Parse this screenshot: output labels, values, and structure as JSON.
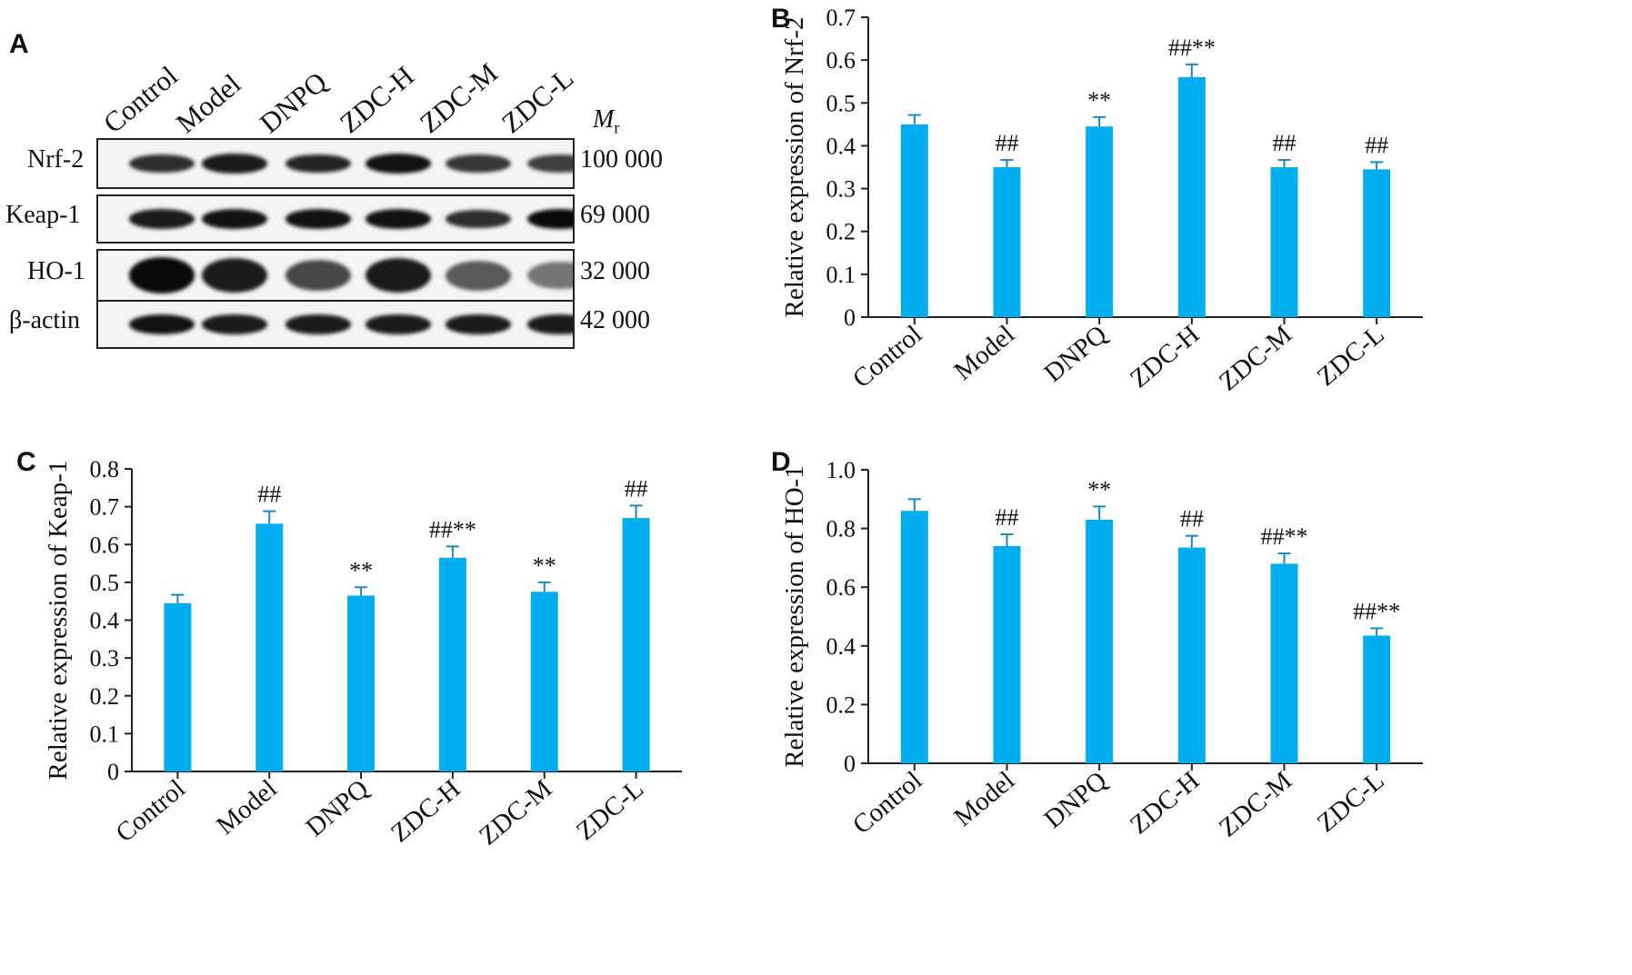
{
  "panels": {
    "a": "A",
    "b": "B",
    "c": "C",
    "d": "D"
  },
  "blot": {
    "lanes": [
      "Control",
      "Model",
      "DNPQ",
      "ZDC-H",
      "ZDC-M",
      "ZDC-L"
    ],
    "mr_symbol": "M",
    "mr_subscript": "r",
    "rows": [
      {
        "protein": "Nrf-2",
        "mr": "100 000",
        "intensity": [
          0.75,
          0.85,
          0.8,
          0.9,
          0.7,
          0.65
        ]
      },
      {
        "protein": "Keap-1",
        "mr": "69 000",
        "intensity": [
          0.85,
          0.9,
          0.9,
          0.9,
          0.75,
          0.95
        ]
      },
      {
        "protein": "HO-1",
        "mr": "32 000",
        "intensity": [
          0.95,
          0.85,
          0.6,
          0.85,
          0.5,
          0.35
        ]
      },
      {
        "protein": "β-actin",
        "mr": "42 000",
        "intensity": [
          0.9,
          0.85,
          0.85,
          0.85,
          0.85,
          0.85
        ]
      }
    ]
  },
  "colors": {
    "bar": "#00AEEF",
    "axis": "#222222"
  },
  "chart_data": [
    {
      "type": "bar",
      "panel": "B",
      "categories": [
        "Control",
        "Model",
        "DNPQ",
        "ZDC-H",
        "ZDC-M",
        "ZDC-L"
      ],
      "values": [
        0.45,
        0.35,
        0.445,
        0.56,
        0.35,
        0.345
      ],
      "errors": [
        0.022,
        0.017,
        0.022,
        0.03,
        0.017,
        0.017
      ],
      "annotations": [
        "",
        "##",
        "**",
        "##**",
        "##",
        "##"
      ],
      "ylabel": "Relative expression of Nrf-2",
      "ylim": [
        0,
        0.7
      ],
      "yticks": [
        "0",
        "0.1",
        "0.2",
        "0.3",
        "0.4",
        "0.5",
        "0.6",
        "0.7"
      ]
    },
    {
      "type": "bar",
      "panel": "C",
      "categories": [
        "Control",
        "Model",
        "DNPQ",
        "ZDC-H",
        "ZDC-M",
        "ZDC-L"
      ],
      "values": [
        0.445,
        0.655,
        0.465,
        0.565,
        0.475,
        0.67
      ],
      "errors": [
        0.022,
        0.033,
        0.022,
        0.03,
        0.025,
        0.033
      ],
      "annotations": [
        "",
        "##",
        "**",
        "##**",
        "**",
        "##"
      ],
      "ylabel": "Relative expression of Keap-1",
      "ylim": [
        0,
        0.8
      ],
      "yticks": [
        "0",
        "0.1",
        "0.2",
        "0.3",
        "0.4",
        "0.5",
        "0.6",
        "0.7",
        "0.8"
      ]
    },
    {
      "type": "bar",
      "panel": "D",
      "categories": [
        "Control",
        "Model",
        "DNPQ",
        "ZDC-H",
        "ZDC-M",
        "ZDC-L"
      ],
      "values": [
        0.86,
        0.74,
        0.83,
        0.735,
        0.68,
        0.435
      ],
      "errors": [
        0.04,
        0.04,
        0.045,
        0.04,
        0.035,
        0.025
      ],
      "annotations": [
        "",
        "##",
        "**",
        "##",
        "##**",
        "##**"
      ],
      "ylabel": "Relative expression of HO-1",
      "ylim": [
        0,
        1.0
      ],
      "yticks": [
        "0",
        "0.2",
        "0.4",
        "0.6",
        "0.8",
        "1.0"
      ]
    }
  ]
}
